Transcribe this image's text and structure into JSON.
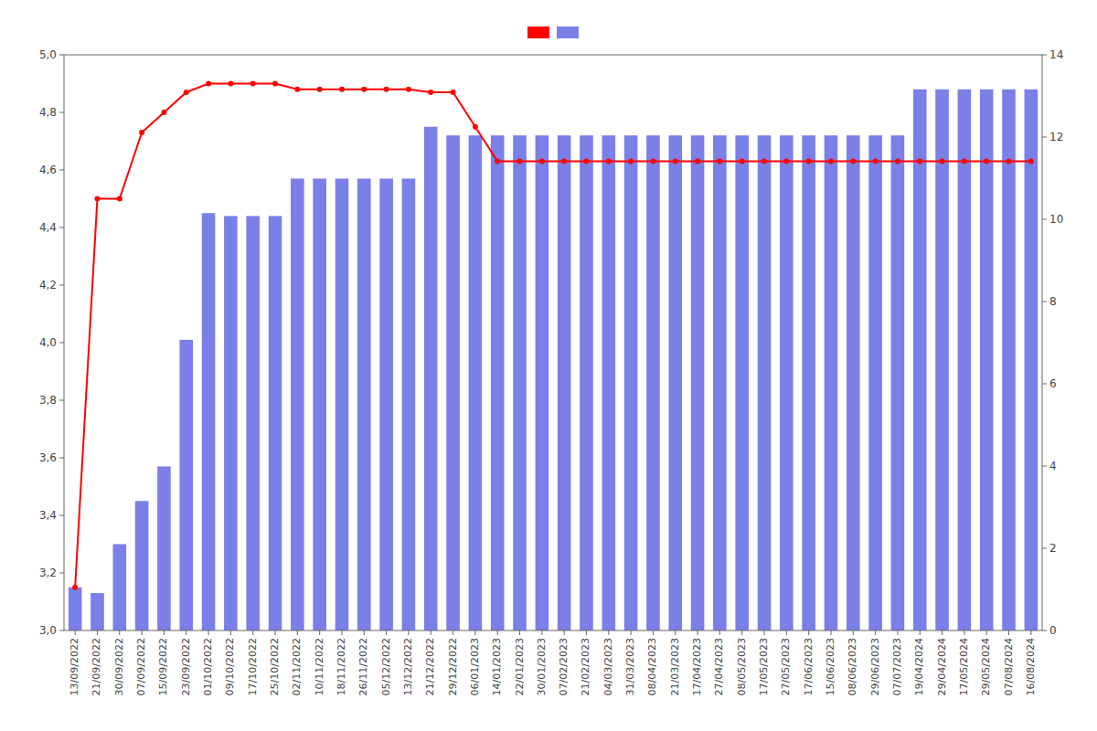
{
  "chart_data": {
    "type": "bar",
    "categories": [
      "13/09/2022",
      "21/09/2022",
      "30/09/2022",
      "07/09/2022",
      "15/09/2022",
      "23/09/2022",
      "01/10/2022",
      "09/10/2022",
      "17/10/2022",
      "25/10/2022",
      "02/11/2022",
      "10/11/2022",
      "18/11/2022",
      "26/11/2022",
      "05/12/2022",
      "13/12/2022",
      "21/12/2022",
      "29/12/2022",
      "06/01/2023",
      "14/01/2023",
      "22/01/2023",
      "30/01/2023",
      "07/02/2023",
      "21/02/2023",
      "04/03/2023",
      "31/03/2023",
      "08/04/2023",
      "21/03/2023",
      "17/04/2023",
      "27/04/2023",
      "08/05/2023",
      "17/05/2023",
      "27/05/2023",
      "17/06/2023",
      "15/06/2023",
      "08/06/2023",
      "29/06/2023",
      "07/07/2023",
      "19/04/2024",
      "29/04/2024",
      "17/05/2024",
      "29/05/2024",
      "07/08/2024",
      "16/08/2024"
    ],
    "series": [
      {
        "type": "bar",
        "color": "#7b7fe8",
        "values": [
          3.15,
          3.13,
          3.3,
          3.45,
          3.57,
          4.01,
          4.45,
          4.44,
          4.44,
          4.44,
          4.57,
          4.57,
          4.57,
          4.57,
          4.57,
          4.57,
          4.75,
          4.72,
          4.72,
          4.72,
          4.72,
          4.72,
          4.72,
          4.72,
          4.72,
          4.72,
          4.72,
          4.72,
          4.72,
          4.72,
          4.72,
          4.72,
          4.72,
          4.72,
          4.72,
          4.72,
          4.72,
          4.72,
          4.88,
          4.88,
          4.88,
          4.88,
          4.88,
          4.88
        ]
      },
      {
        "type": "line",
        "color": "#ff0000",
        "marker": "circle",
        "values": [
          3.15,
          4.5,
          4.5,
          4.73,
          4.8,
          4.87,
          4.9,
          4.9,
          4.9,
          4.9,
          4.88,
          4.88,
          4.88,
          4.88,
          4.88,
          4.88,
          4.87,
          4.87,
          4.75,
          4.63,
          4.63,
          4.63,
          4.63,
          4.63,
          4.63,
          4.63,
          4.63,
          4.63,
          4.63,
          4.63,
          4.63,
          4.63,
          4.63,
          4.63,
          4.63,
          4.63,
          4.63,
          4.63,
          4.63,
          4.63,
          4.63,
          4.63,
          4.63,
          4.63
        ]
      }
    ],
    "ylim": [
      3.0,
      5.0
    ],
    "yticks": [
      {
        "value": 3.0,
        "label": "3,0"
      },
      {
        "value": 3.2,
        "label": "3,2"
      },
      {
        "value": 3.4,
        "label": "3,4"
      },
      {
        "value": 3.6,
        "label": "3,6"
      },
      {
        "value": 3.8,
        "label": "3,8"
      },
      {
        "value": 4.0,
        "label": "4,0"
      },
      {
        "value": 4.2,
        "label": "4,2"
      },
      {
        "value": 4.4,
        "label": "4,4"
      },
      {
        "value": 4.6,
        "label": "4,6"
      },
      {
        "value": 4.8,
        "label": "4,8"
      },
      {
        "value": 5.0,
        "label": "5,0"
      }
    ],
    "y2lim": [
      0,
      14
    ],
    "y2ticks": [
      0,
      2,
      4,
      6,
      8,
      10,
      12,
      14
    ],
    "grid": false,
    "legend": "upper center"
  }
}
